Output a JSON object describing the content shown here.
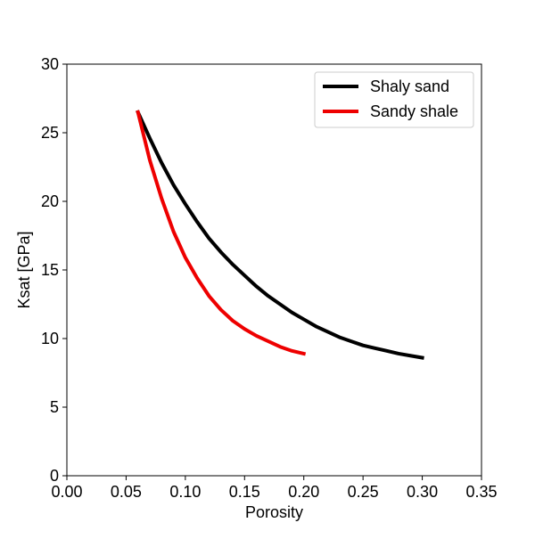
{
  "chart_data": {
    "type": "line",
    "title": "",
    "xlabel": "Porosity",
    "ylabel": "Ksat [GPa]",
    "xlim": [
      0.0,
      0.35
    ],
    "ylim": [
      0,
      30
    ],
    "xticks": [
      0.0,
      0.05,
      0.1,
      0.15,
      0.2,
      0.25,
      0.3,
      0.35
    ],
    "xtick_labels": [
      "0.00",
      "0.05",
      "0.10",
      "0.15",
      "0.20",
      "0.25",
      "0.30",
      "0.35"
    ],
    "yticks": [
      0,
      5,
      10,
      15,
      20,
      25,
      30
    ],
    "ytick_labels": [
      "0",
      "5",
      "10",
      "15",
      "20",
      "25",
      "30"
    ],
    "grid": false,
    "legend_position": "top-right",
    "series": [
      {
        "name": "Shaly sand",
        "color": "#000000",
        "x": [
          0.06,
          0.07,
          0.08,
          0.09,
          0.1,
          0.11,
          0.12,
          0.13,
          0.14,
          0.15,
          0.16,
          0.17,
          0.18,
          0.19,
          0.2,
          0.21,
          0.22,
          0.23,
          0.24,
          0.25,
          0.26,
          0.27,
          0.28,
          0.29,
          0.3
        ],
        "y": [
          26.5,
          24.6,
          22.8,
          21.2,
          19.8,
          18.5,
          17.3,
          16.3,
          15.4,
          14.6,
          13.8,
          13.1,
          12.5,
          11.9,
          11.4,
          10.9,
          10.5,
          10.1,
          9.8,
          9.5,
          9.3,
          9.1,
          8.9,
          8.75,
          8.6
        ]
      },
      {
        "name": "Sandy shale",
        "color": "#ee0000",
        "x": [
          0.06,
          0.07,
          0.08,
          0.09,
          0.1,
          0.11,
          0.12,
          0.13,
          0.14,
          0.15,
          0.16,
          0.17,
          0.18,
          0.19,
          0.2
        ],
        "y": [
          26.5,
          23.0,
          20.2,
          17.8,
          15.9,
          14.4,
          13.1,
          12.1,
          11.3,
          10.7,
          10.2,
          9.8,
          9.4,
          9.1,
          8.9
        ]
      }
    ]
  }
}
